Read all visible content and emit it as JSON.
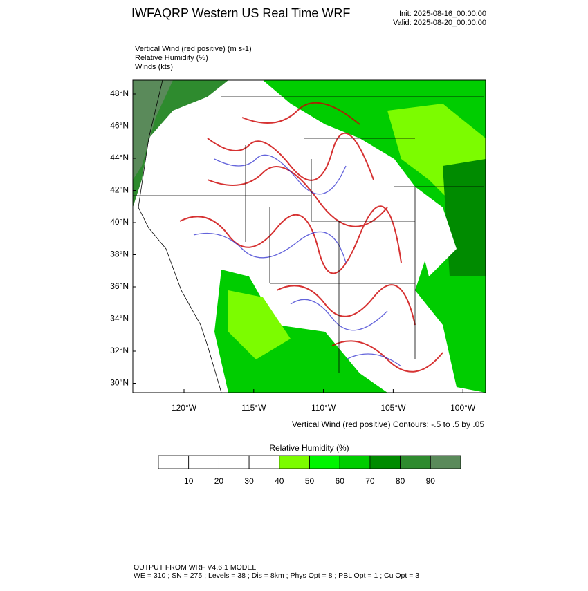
{
  "header": {
    "title": "IWFAQRP Western US Real Time WRF",
    "init": "Init: 2025-08-16_00:00:00",
    "valid": "Valid: 2025-08-20_00:00:00"
  },
  "fields": [
    "Vertical Wind (red positive)   (m s-1)",
    "Relative Humidity   (%)",
    "Winds   (kts)"
  ],
  "map": {
    "lat_labels": [
      "48°N",
      "46°N",
      "44°N",
      "42°N",
      "40°N",
      "38°N",
      "36°N",
      "34°N",
      "32°N",
      "30°N"
    ],
    "lon_labels": [
      "120°W",
      "115°W",
      "110°W",
      "105°W",
      "100°W"
    ]
  },
  "contour_note": "Vertical Wind (red positive) Contours: -.5 to .5 by .05",
  "colorbar": {
    "title": "Relative Humidity  (%)",
    "ticks": [
      10,
      20,
      30,
      40,
      50,
      60,
      70,
      80,
      90
    ],
    "colors": [
      "#ffffff",
      "#ffffff",
      "#ffffff",
      "#ffffff",
      "#7cfc00",
      "#00f500",
      "#00cd00",
      "#008b00",
      "#2e8b2e",
      "#5a8a5a"
    ]
  },
  "footer": [
    "OUTPUT FROM WRF V4.6.1 MODEL",
    "WE = 310 ; SN = 275 ; Levels = 38 ; Dis = 8km ; Phys Opt = 8 ; PBL Opt = 1 ; Cu Opt = 3"
  ]
}
